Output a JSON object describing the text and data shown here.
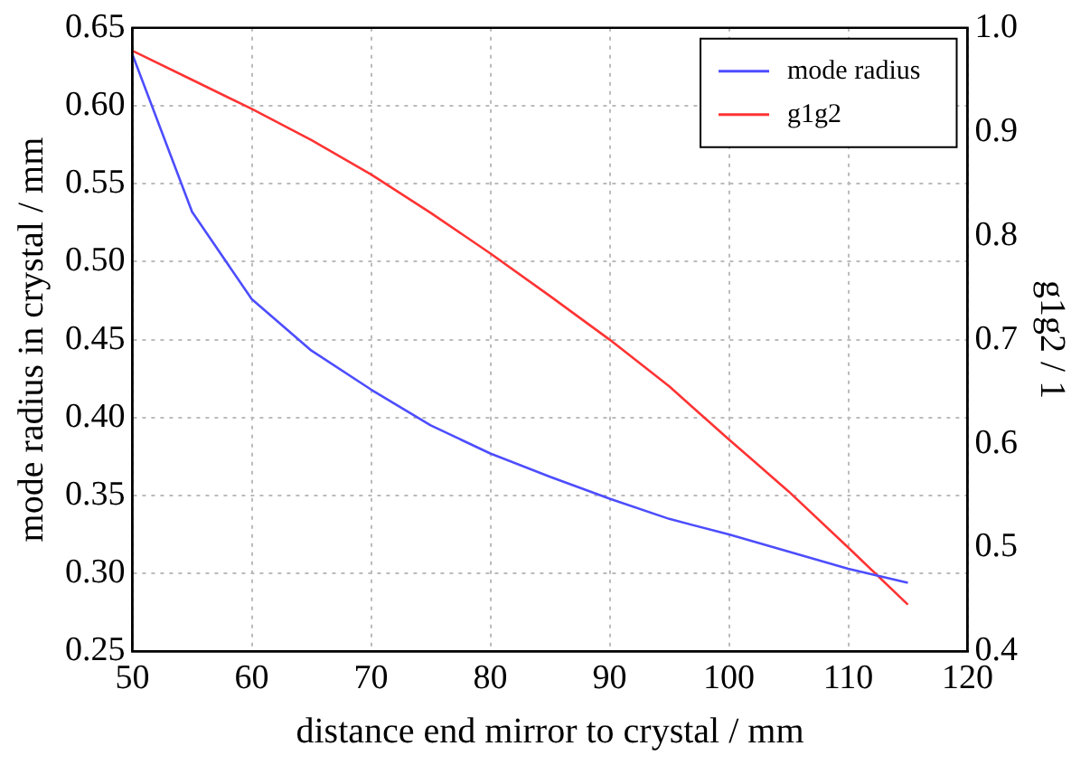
{
  "chart_data": {
    "type": "line",
    "xlabel": "distance end mirror to crystal / mm",
    "ylabel": "mode radius in crystal / mm",
    "y2label": "g1g2 / 1",
    "x": [
      50,
      55,
      60,
      65,
      70,
      75,
      80,
      85,
      90,
      95,
      100,
      105,
      110,
      115
    ],
    "series": [
      {
        "name": "mode radius",
        "color": "#4d4dff",
        "values": [
          0.633,
          0.532,
          0.476,
          0.443,
          0.418,
          0.395,
          0.377,
          0.362,
          0.348,
          0.335,
          0.325,
          0.314,
          0.303,
          0.294
        ]
      },
      {
        "name": "g1g2",
        "color": "#ff3333",
        "axis": "y2",
        "values": [
          0.978,
          0.95,
          0.922,
          0.892,
          0.859,
          0.822,
          0.783,
          0.742,
          0.7,
          0.655,
          0.604,
          0.554,
          0.5,
          0.445
        ]
      }
    ],
    "xlim": [
      50,
      120
    ],
    "xticks": [
      50,
      60,
      70,
      80,
      90,
      100,
      110,
      120
    ],
    "ylim": [
      0.25,
      0.65
    ],
    "yticks": [
      0.25,
      {
        "value": 0.3,
        "label": "0.30"
      },
      0.35,
      {
        "value": 0.4,
        "label": "0.40"
      },
      0.45,
      {
        "value": 0.5,
        "label": "0.50"
      },
      0.55,
      {
        "value": 0.6,
        "label": "0.60"
      },
      0.65
    ],
    "y2lim": [
      0.4,
      1.0
    ],
    "y2ticks": [
      0.4,
      0.5,
      0.6,
      0.7,
      0.8,
      0.9,
      {
        "value": 1.0,
        "label": "1.0"
      }
    ],
    "grid": true,
    "legend": "top right",
    "marker": "none",
    "line_style": "solid"
  }
}
